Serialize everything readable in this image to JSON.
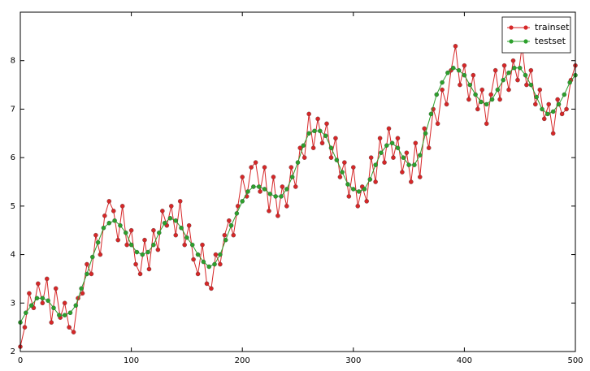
{
  "chart_data": {
    "type": "line",
    "xlim": [
      0,
      500
    ],
    "ylim": [
      2,
      9
    ],
    "xticks": [
      0,
      100,
      200,
      300,
      400,
      500
    ],
    "yticks": [
      2,
      3,
      4,
      5,
      6,
      7,
      8
    ],
    "legend": "upper right",
    "series": [
      {
        "name": "trainset",
        "color": "#d62728",
        "x": [
          0,
          4,
          8,
          12,
          16,
          20,
          24,
          28,
          32,
          36,
          40,
          44,
          48,
          52,
          56,
          60,
          64,
          68,
          72,
          76,
          80,
          84,
          88,
          92,
          96,
          100,
          104,
          108,
          112,
          116,
          120,
          124,
          128,
          132,
          136,
          140,
          144,
          148,
          152,
          156,
          160,
          164,
          168,
          172,
          176,
          180,
          184,
          188,
          192,
          196,
          200,
          204,
          208,
          212,
          216,
          220,
          224,
          228,
          232,
          236,
          240,
          244,
          248,
          252,
          256,
          260,
          264,
          268,
          272,
          276,
          280,
          284,
          288,
          292,
          296,
          300,
          304,
          308,
          312,
          316,
          320,
          324,
          328,
          332,
          336,
          340,
          344,
          348,
          352,
          356,
          360,
          364,
          368,
          372,
          376,
          380,
          384,
          388,
          392,
          396,
          400,
          404,
          408,
          412,
          416,
          420,
          424,
          428,
          432,
          436,
          440,
          444,
          448,
          452,
          456,
          460,
          464,
          468,
          472,
          476,
          480,
          484,
          488,
          492,
          496,
          500
        ],
        "values": [
          2.1,
          2.5,
          3.2,
          2.9,
          3.4,
          3.0,
          3.5,
          2.6,
          3.3,
          2.7,
          3.0,
          2.5,
          2.4,
          3.1,
          3.2,
          3.8,
          3.6,
          4.4,
          4.0,
          4.8,
          5.1,
          4.9,
          4.3,
          5.0,
          4.2,
          4.5,
          3.8,
          3.6,
          4.3,
          3.7,
          4.5,
          4.1,
          4.9,
          4.6,
          5.0,
          4.4,
          5.1,
          4.2,
          4.6,
          3.9,
          3.6,
          4.2,
          3.4,
          3.3,
          4.0,
          3.8,
          4.4,
          4.7,
          4.4,
          5.0,
          5.6,
          5.2,
          5.8,
          5.9,
          5.3,
          5.8,
          4.9,
          5.6,
          4.8,
          5.4,
          5.0,
          5.8,
          5.4,
          6.2,
          6.0,
          6.9,
          6.2,
          6.8,
          6.3,
          6.7,
          6.0,
          6.4,
          5.6,
          5.9,
          5.2,
          5.8,
          5.0,
          5.4,
          5.1,
          6.0,
          5.5,
          6.4,
          5.9,
          6.6,
          6.0,
          6.4,
          5.7,
          6.1,
          5.5,
          6.3,
          5.6,
          6.6,
          6.2,
          7.0,
          6.7,
          7.4,
          7.1,
          7.8,
          8.3,
          7.5,
          7.9,
          7.2,
          7.7,
          7.0,
          7.4,
          6.7,
          7.3,
          7.8,
          7.2,
          7.9,
          7.4,
          8.0,
          7.6,
          8.3,
          7.5,
          7.8,
          7.1,
          7.4,
          6.8,
          7.1,
          6.5,
          7.2,
          6.9,
          7.0,
          7.6,
          7.9
        ]
      },
      {
        "name": "testset",
        "color": "#2ca02c",
        "x": [
          0,
          5,
          10,
          15,
          20,
          25,
          30,
          35,
          40,
          45,
          50,
          55,
          60,
          65,
          70,
          75,
          80,
          85,
          90,
          95,
          100,
          105,
          110,
          115,
          120,
          125,
          130,
          135,
          140,
          145,
          150,
          155,
          160,
          165,
          170,
          175,
          180,
          185,
          190,
          195,
          200,
          205,
          210,
          215,
          220,
          225,
          230,
          235,
          240,
          245,
          250,
          255,
          260,
          265,
          270,
          275,
          280,
          285,
          290,
          295,
          300,
          305,
          310,
          315,
          320,
          325,
          330,
          335,
          340,
          345,
          350,
          355,
          360,
          365,
          370,
          375,
          380,
          385,
          390,
          395,
          400,
          405,
          410,
          415,
          420,
          425,
          430,
          435,
          440,
          445,
          450,
          455,
          460,
          465,
          470,
          475,
          480,
          485,
          490,
          495,
          500
        ],
        "values": [
          2.6,
          2.8,
          2.95,
          3.1,
          3.1,
          3.05,
          2.9,
          2.75,
          2.75,
          2.8,
          2.95,
          3.3,
          3.6,
          3.95,
          4.25,
          4.55,
          4.65,
          4.7,
          4.6,
          4.45,
          4.2,
          4.05,
          4.0,
          4.05,
          4.2,
          4.45,
          4.65,
          4.75,
          4.7,
          4.55,
          4.35,
          4.2,
          4.0,
          3.85,
          3.75,
          3.8,
          4.0,
          4.3,
          4.6,
          4.85,
          5.1,
          5.3,
          5.4,
          5.4,
          5.35,
          5.25,
          5.2,
          5.2,
          5.35,
          5.6,
          5.9,
          6.25,
          6.5,
          6.55,
          6.55,
          6.45,
          6.2,
          5.95,
          5.7,
          5.45,
          5.35,
          5.3,
          5.35,
          5.55,
          5.85,
          6.1,
          6.25,
          6.3,
          6.2,
          6.0,
          5.85,
          5.85,
          6.05,
          6.5,
          6.9,
          7.3,
          7.55,
          7.75,
          7.85,
          7.8,
          7.7,
          7.5,
          7.3,
          7.15,
          7.1,
          7.2,
          7.4,
          7.6,
          7.75,
          7.85,
          7.85,
          7.7,
          7.5,
          7.25,
          7.0,
          6.9,
          6.95,
          7.1,
          7.3,
          7.55,
          7.7
        ]
      }
    ]
  }
}
